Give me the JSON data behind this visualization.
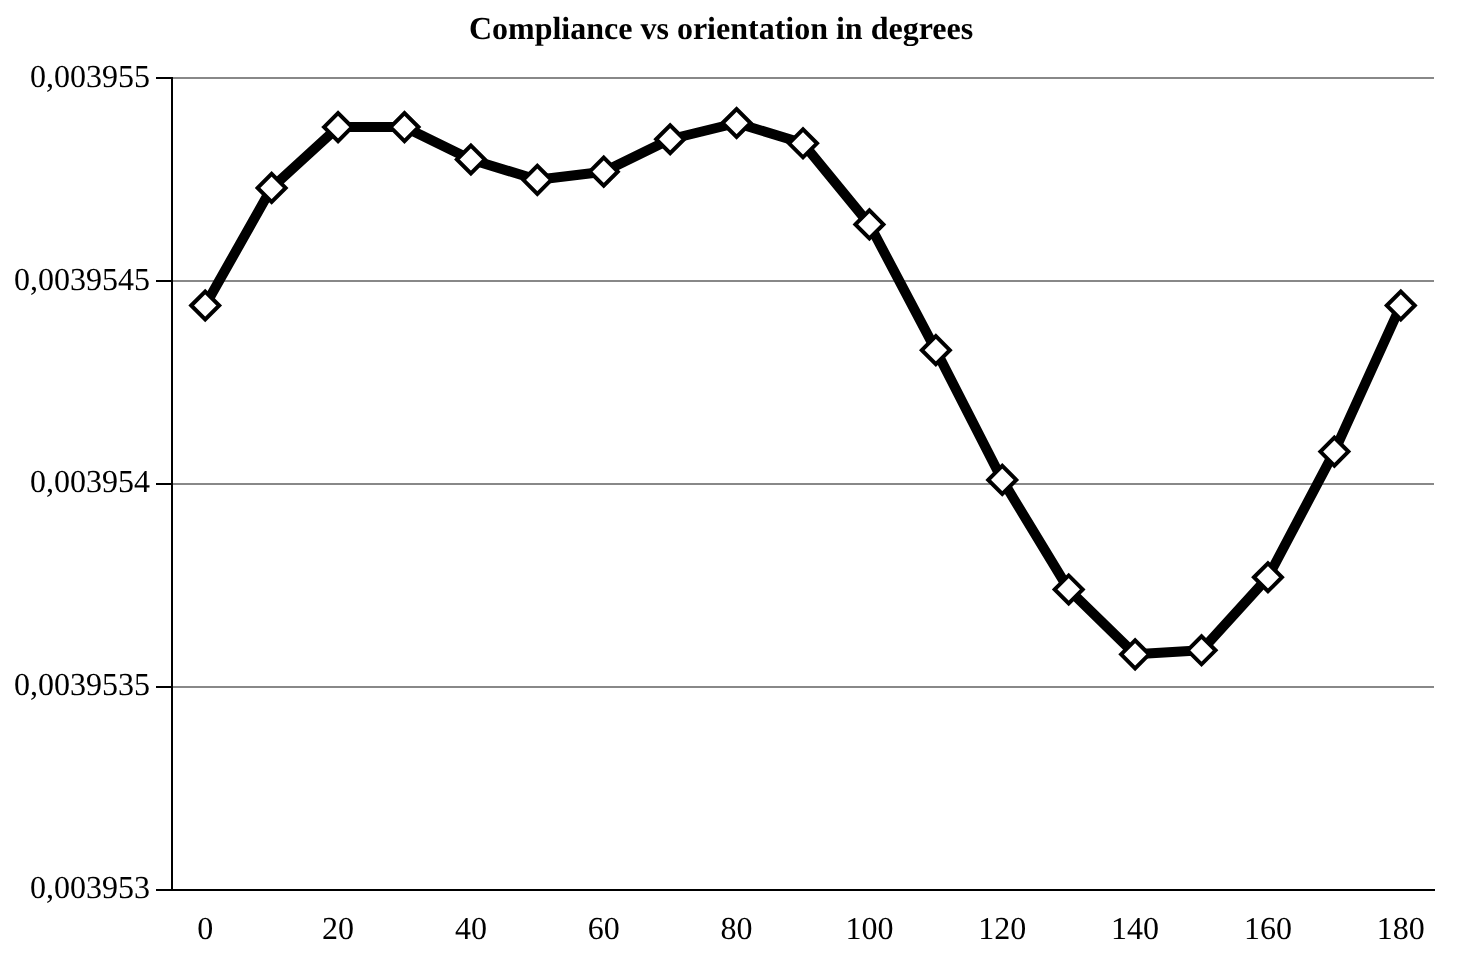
{
  "chart_data": {
    "type": "line",
    "title": "Compliance vs orientation in degrees",
    "x": [
      0,
      10,
      20,
      30,
      40,
      50,
      60,
      70,
      80,
      90,
      100,
      110,
      120,
      130,
      140,
      150,
      160,
      170,
      180
    ],
    "series": [
      {
        "color": "#000000",
        "values": [
          0.00395444,
          0.00395473,
          0.00395488,
          0.00395488,
          0.0039548,
          0.00395475,
          0.00395477,
          0.00395485,
          0.00395489,
          0.00395484,
          0.00395464,
          0.00395433,
          0.00395401,
          0.00395374,
          0.00395358,
          0.00395359,
          0.00395377,
          0.00395408,
          0.00395444
        ]
      }
    ],
    "xlim": [
      -5,
      185
    ],
    "xticks": [
      0,
      20,
      40,
      60,
      80,
      100,
      120,
      140,
      160,
      180
    ],
    "ylim": [
      0.003953,
      0.003955
    ],
    "yticks": [
      {
        "value": 0.003953,
        "label": "0,003953"
      },
      {
        "value": 0.0039535,
        "label": "0,0039535"
      },
      {
        "value": 0.003954,
        "label": "0,003954"
      },
      {
        "value": 0.0039545,
        "label": "0,0039545"
      },
      {
        "value": 0.003955,
        "label": "0,003955"
      }
    ],
    "grid": "y",
    "legend": false,
    "marker": "diamond",
    "line_style": "solid"
  }
}
